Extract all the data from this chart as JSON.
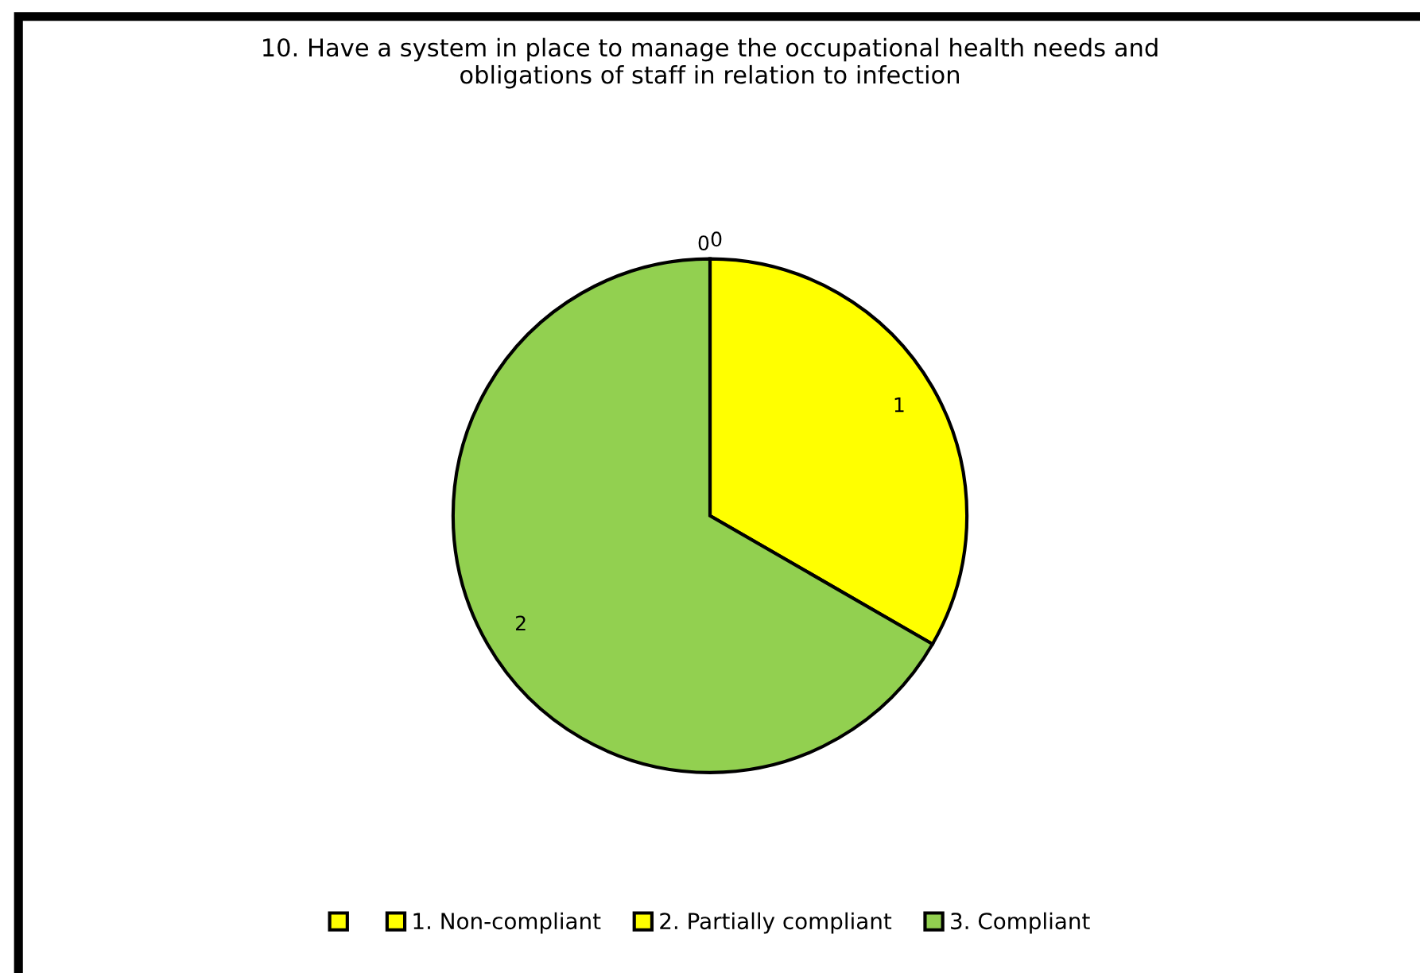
{
  "chart_data": {
    "type": "pie",
    "title": "10. Have a system in place to manage the occupational health needs and\nobligations of staff in relation to infection",
    "categories": [
      null,
      "1. Non-compliant",
      "2. Partially compliant",
      "3. Compliant"
    ],
    "values": [
      0,
      0,
      1,
      2
    ],
    "colors": [
      "#ffff00",
      "#ffff00",
      "#ffff00",
      "#92d050"
    ],
    "value_labels": [
      "0",
      "0",
      "1",
      "2"
    ],
    "legend": "bottom"
  }
}
